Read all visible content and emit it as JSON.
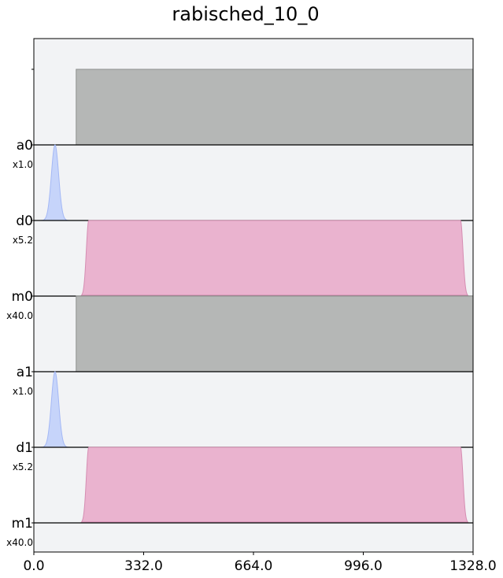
{
  "chart_data": {
    "type": "area",
    "title": "rabisched_10_0",
    "xlim": [
      0,
      1328
    ],
    "x_ticks": [
      "0.0",
      "332.0",
      "664.0",
      "996.0",
      "1328.0"
    ],
    "x_tick_values": [
      0,
      332,
      664,
      996,
      1328
    ],
    "background_color": "#f2f3f5",
    "channels": [
      {
        "name": "a0",
        "scale": "x1.0",
        "kind": "acquire",
        "color": "#b5b7b6",
        "edge": "#8f918f",
        "start": 128,
        "end": 1328,
        "level": 1.0
      },
      {
        "name": "d0",
        "scale": "x5.2",
        "kind": "gaussian",
        "color": "#c6d4fa",
        "edge": "#a4b8f5",
        "center": 64,
        "sigma": 11,
        "trunc": 52,
        "level": 1.0
      },
      {
        "name": "m0",
        "scale": "x40.0",
        "kind": "gaussian_square",
        "color": "#eab3cf",
        "edge": "#d58db2",
        "start": 144,
        "end": 1312,
        "rise": 22,
        "level": 1.0
      },
      {
        "name": "a1",
        "scale": "x1.0",
        "kind": "acquire",
        "color": "#b5b7b6",
        "edge": "#8f918f",
        "start": 128,
        "end": 1328,
        "level": 1.0
      },
      {
        "name": "d1",
        "scale": "x5.2",
        "kind": "gaussian",
        "color": "#c6d4fa",
        "edge": "#a4b8f5",
        "center": 64,
        "sigma": 11,
        "trunc": 52,
        "level": 1.0
      },
      {
        "name": "m1",
        "scale": "x40.0",
        "kind": "gaussian_square",
        "color": "#eab3cf",
        "edge": "#d58db2",
        "start": 144,
        "end": 1312,
        "rise": 22,
        "level": 1.0
      }
    ]
  }
}
